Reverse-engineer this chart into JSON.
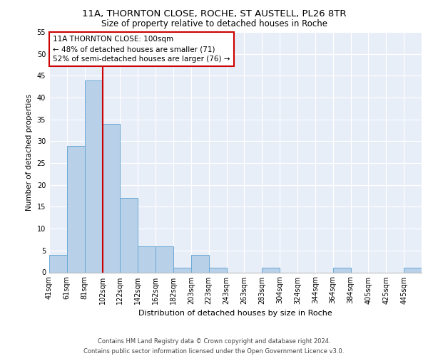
{
  "title1": "11A, THORNTON CLOSE, ROCHE, ST AUSTELL, PL26 8TR",
  "title2": "Size of property relative to detached houses in Roche",
  "xlabel": "Distribution of detached houses by size in Roche",
  "ylabel": "Number of detached properties",
  "bar_values": [
    4,
    29,
    44,
    34,
    17,
    6,
    6,
    1,
    4,
    1,
    0,
    0,
    1,
    0,
    0,
    0,
    1,
    0,
    0,
    0,
    1
  ],
  "bar_color": "#b8d0e8",
  "bar_edge_color": "#6aaad4",
  "bar_width": 1.0,
  "vline_x": 3,
  "vline_color": "#cc0000",
  "ylim": [
    0,
    55
  ],
  "yticks": [
    0,
    5,
    10,
    15,
    20,
    25,
    30,
    35,
    40,
    45,
    50,
    55
  ],
  "annotation_text": "11A THORNTON CLOSE: 100sqm\n← 48% of detached houses are smaller (71)\n52% of semi-detached houses are larger (76) →",
  "annotation_box_color": "#ffffff",
  "annotation_border_color": "#cc0000",
  "bg_color": "#e8eef8",
  "footer_text": "Contains HM Land Registry data © Crown copyright and database right 2024.\nContains public sector information licensed under the Open Government Licence v3.0.",
  "all_labels": [
    "41sqm",
    "61sqm",
    "81sqm",
    "102sqm",
    "122sqm",
    "142sqm",
    "162sqm",
    "182sqm",
    "203sqm",
    "223sqm",
    "243sqm",
    "263sqm",
    "283sqm",
    "304sqm",
    "324sqm",
    "344sqm",
    "364sqm",
    "384sqm",
    "405sqm",
    "425sqm",
    "445sqm"
  ],
  "title1_fontsize": 9.5,
  "title2_fontsize": 8.5,
  "xlabel_fontsize": 8,
  "ylabel_fontsize": 7.5,
  "tick_fontsize": 7,
  "footer_fontsize": 6,
  "annot_fontsize": 7.5
}
